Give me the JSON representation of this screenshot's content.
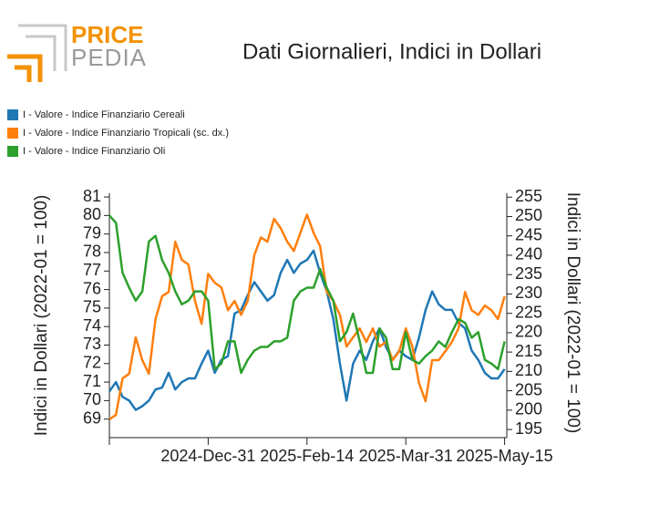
{
  "logo": {
    "top": "PRICE",
    "bottom": "PEDIA"
  },
  "chart_data": {
    "type": "line",
    "title": "Dati Giornalieri, Indici in Dollari",
    "y_label": "Indici in Dollari (2022-01 = 100)",
    "y2_label": "Indici in Dollari (2022-01 = 100)",
    "x": [
      "2024-11-16",
      "2024-11-19",
      "2024-11-22",
      "2024-11-25",
      "2024-11-28",
      "2024-12-01",
      "2024-12-04",
      "2024-12-07",
      "2024-12-10",
      "2024-12-13",
      "2024-12-16",
      "2024-12-19",
      "2024-12-22",
      "2024-12-25",
      "2024-12-28",
      "2024-12-31",
      "2025-01-03",
      "2025-01-06",
      "2025-01-09",
      "2025-01-12",
      "2025-01-15",
      "2025-01-18",
      "2025-01-21",
      "2025-01-24",
      "2025-01-27",
      "2025-01-30",
      "2025-02-02",
      "2025-02-05",
      "2025-02-08",
      "2025-02-11",
      "2025-02-14",
      "2025-02-17",
      "2025-02-20",
      "2025-02-23",
      "2025-02-26",
      "2025-03-01",
      "2025-03-04",
      "2025-03-07",
      "2025-03-10",
      "2025-03-13",
      "2025-03-16",
      "2025-03-19",
      "2025-03-22",
      "2025-03-25",
      "2025-03-28",
      "2025-03-31",
      "2025-04-03",
      "2025-04-06",
      "2025-04-09",
      "2025-04-12",
      "2025-04-15",
      "2025-04-18",
      "2025-04-21",
      "2025-04-24",
      "2025-04-27",
      "2025-04-30",
      "2025-05-03",
      "2025-05-06",
      "2025-05-09",
      "2025-05-12",
      "2025-05-15"
    ],
    "xlim": [
      "2024-11-16",
      "2025-05-16"
    ],
    "xticks": [
      {
        "value": "2024-12-31",
        "label": "2024-Dec-31"
      },
      {
        "value": "2025-02-14",
        "label": "2025-Feb-14"
      },
      {
        "value": "2025-03-31",
        "label": "2025-Mar-31"
      },
      {
        "value": "2025-05-15",
        "label": "2025-May-15"
      }
    ],
    "ylim": [
      68,
      81.2
    ],
    "yticks": [
      69,
      70,
      71,
      72,
      73,
      74,
      75,
      76,
      77,
      78,
      79,
      80,
      81
    ],
    "y2lim": [
      192.9,
      256
    ],
    "y2ticks": [
      195,
      200,
      205,
      210,
      215,
      220,
      225,
      230,
      235,
      240,
      245,
      250,
      255
    ],
    "series": [
      {
        "name": "I - Valore - Indice Finanziario Cereali",
        "color": "#1f77b4",
        "values": [
          70.5,
          71.0,
          70.2,
          70.0,
          69.5,
          69.7,
          70.0,
          70.6,
          70.7,
          71.5,
          70.6,
          71.0,
          71.2,
          71.2,
          72.0,
          72.7,
          71.5,
          72.2,
          72.4,
          74.7,
          74.9,
          75.7,
          76.4,
          75.9,
          75.4,
          75.7,
          76.9,
          77.6,
          76.9,
          77.4,
          77.6,
          78.1,
          76.9,
          75.9,
          74.4,
          72.0,
          70.0,
          72.0,
          72.7,
          72.2,
          73.2,
          73.9,
          72.9,
          72.2,
          72.7,
          72.4,
          72.2,
          73.4,
          74.9,
          75.9,
          75.2,
          74.9,
          74.9,
          74.2,
          73.9,
          72.7,
          72.2,
          71.5,
          71.2,
          71.2,
          71.7
        ]
      },
      {
        "name": "I - Valore - Indice Finanziario Tropicali (sc. dx.)",
        "color": "#ff7f0e",
        "axis": "y2",
        "values": [
          197.6,
          198.8,
          208.2,
          209.4,
          218.8,
          212.9,
          209.4,
          223.5,
          229.4,
          230.5,
          243.5,
          238.8,
          237.6,
          228.2,
          222.3,
          235.2,
          232.9,
          231.7,
          225.8,
          228.2,
          224.6,
          228.2,
          240.0,
          244.6,
          243.5,
          249.4,
          247.0,
          243.5,
          241.1,
          245.8,
          250.5,
          245.8,
          242.3,
          230.5,
          228.2,
          224.6,
          216.4,
          218.8,
          221.1,
          217.6,
          221.1,
          216.4,
          217.6,
          212.9,
          215.2,
          221.1,
          216.4,
          207.0,
          202.3,
          212.9,
          212.9,
          215.2,
          217.6,
          221.1,
          230.5,
          225.8,
          224.6,
          227.0,
          225.8,
          223.5,
          229.4
        ]
      },
      {
        "name": "I - Valore - Indice Finanziario Oli",
        "color": "#2ca02c",
        "values": [
          80.0,
          79.6,
          76.9,
          76.1,
          75.4,
          75.9,
          78.6,
          78.9,
          77.6,
          76.9,
          75.9,
          75.2,
          75.4,
          75.9,
          75.9,
          75.4,
          71.7,
          72.0,
          73.2,
          73.2,
          71.5,
          72.2,
          72.7,
          72.9,
          72.9,
          73.2,
          73.2,
          73.4,
          75.4,
          75.9,
          76.1,
          76.1,
          77.1,
          76.1,
          75.4,
          73.2,
          73.7,
          74.7,
          73.2,
          71.5,
          71.5,
          73.9,
          73.4,
          71.7,
          71.7,
          73.7,
          72.2,
          72.0,
          72.4,
          72.7,
          73.2,
          72.9,
          73.7,
          74.4,
          74.2,
          73.4,
          73.7,
          72.2,
          72.0,
          71.7,
          73.2
        ]
      }
    ]
  }
}
